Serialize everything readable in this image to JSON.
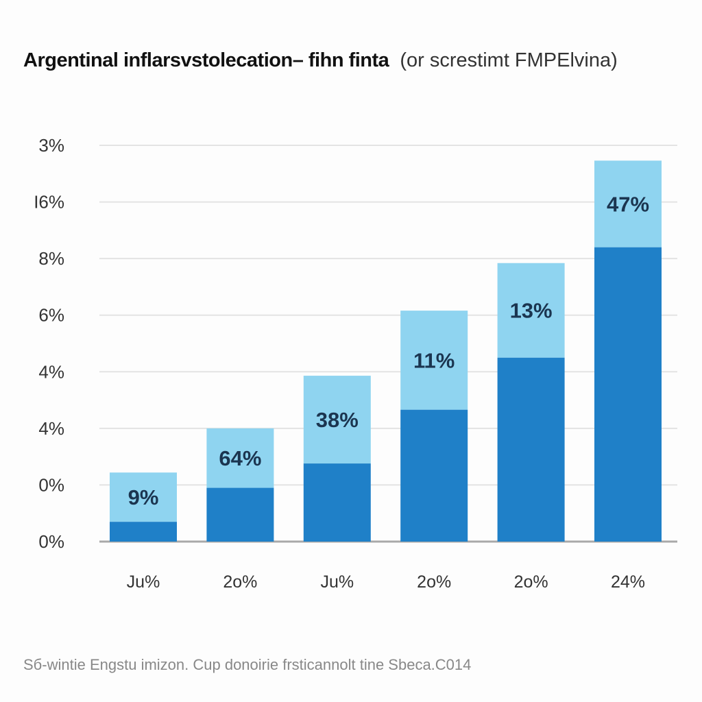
{
  "chart_data": {
    "type": "bar",
    "title": "Argentinal inflarsvstolecation– fihn finta",
    "subtitle": "(or screstimt FMPElvina)",
    "source": "Sб-wintie Engstu imizon. Cup donoirie frsticannolt tine Sbeca.C014",
    "y_ticks": [
      "3%",
      "I6%",
      "8%",
      "6%",
      "4%",
      "4%",
      "0%",
      "0%"
    ],
    "categories": [
      "Ju%",
      "2о%",
      "Ju%",
      "2о%",
      "2о%",
      "24%"
    ],
    "series": [
      {
        "values": [
          0.35,
          0.95,
          1.38,
          2.33,
          3.25,
          5.2
        ],
        "color": "#1f80c8"
      },
      {
        "values": [
          0.87,
          1.05,
          1.55,
          1.75,
          1.67,
          1.53
        ],
        "color": "#8fd4f0"
      }
    ],
    "data_labels": [
      "9%",
      "64%",
      "38%",
      "11%",
      "13%",
      "47%"
    ],
    "ylim": [
      0,
      7
    ],
    "grid": true,
    "legend": "none",
    "colors": {
      "bar_dark": "#1f80c8",
      "bar_light": "#8fd4f0",
      "grid": "#e3e3e3",
      "axis": "#a9a9a9"
    }
  }
}
